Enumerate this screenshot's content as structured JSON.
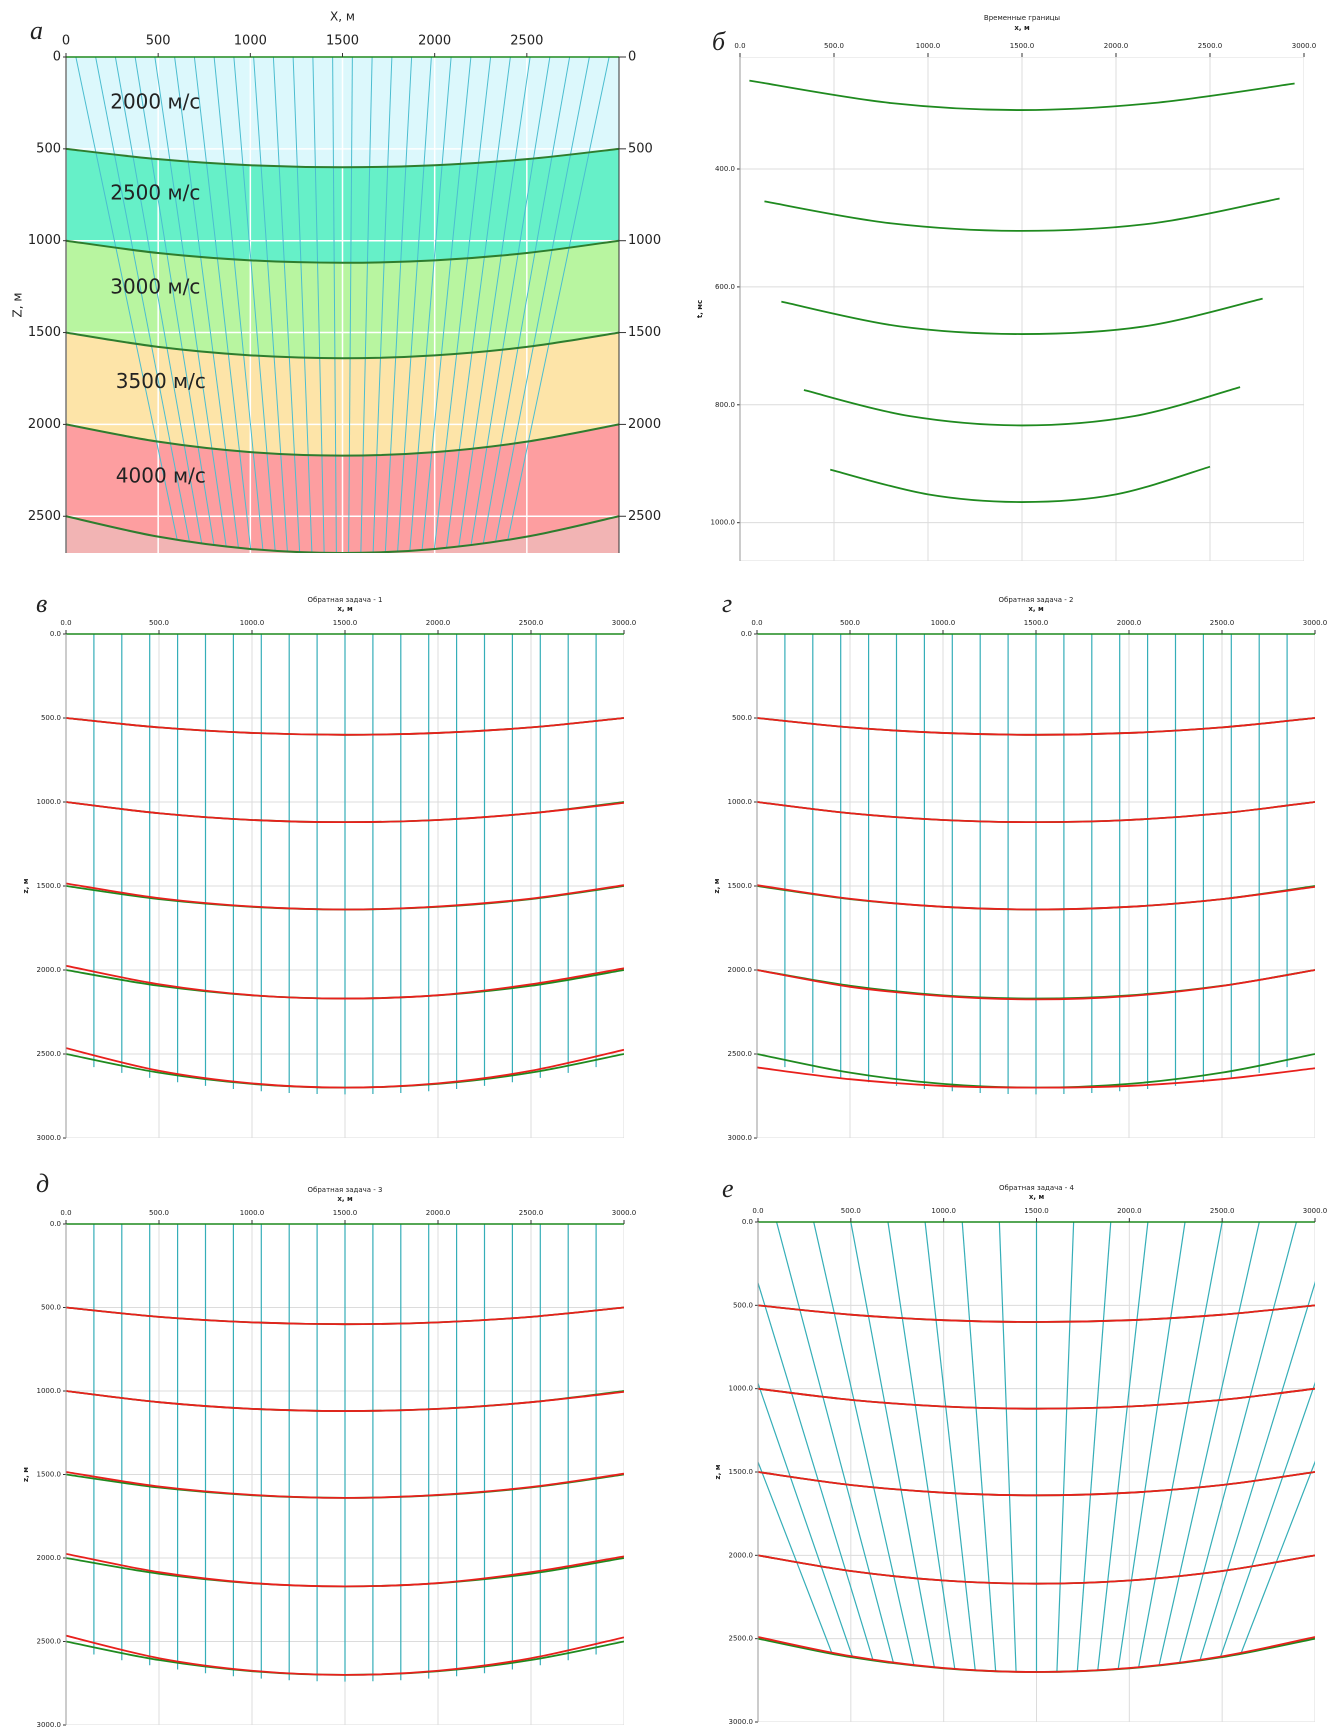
{
  "chart_data": [
    {
      "panel_label": "а",
      "type": "area",
      "x_label": "X, м",
      "y_label": "Z, м",
      "xlim": [
        0,
        3000
      ],
      "ylim": [
        0,
        2700
      ],
      "xticks": [
        0,
        500,
        1000,
        1500,
        2000,
        2500
      ],
      "yticks": [
        0,
        500,
        1000,
        1500,
        2000,
        2500
      ],
      "grid": true,
      "x": [
        0,
        500,
        1000,
        1500,
        2000,
        2500,
        3000
      ],
      "layers": [
        {
          "label": "2000 м/с",
          "color": "#dcf8fc"
        },
        {
          "label": "2500 м/с",
          "color": "#66f0c8"
        },
        {
          "label": "3000 м/с",
          "color": "#b8f5a0"
        },
        {
          "label": "3500 м/с",
          "color": "#fde4a8"
        },
        {
          "label": "4000 м/с",
          "color": "#fd9ea0"
        }
      ],
      "series": [
        {
          "color": "#2e7d2e",
          "values": [
            500,
            556,
            589,
            600,
            589,
            556,
            500
          ]
        },
        {
          "color": "#2e7d2e",
          "values": [
            1000,
            1067,
            1107,
            1120,
            1107,
            1067,
            1000
          ]
        },
        {
          "color": "#2e7d2e",
          "values": [
            1500,
            1578,
            1624,
            1640,
            1624,
            1578,
            1500
          ]
        },
        {
          "color": "#2e7d2e",
          "values": [
            2000,
            2094,
            2151,
            2170,
            2151,
            2094,
            2000
          ]
        },
        {
          "color": "#2e7d2e",
          "values": [
            2500,
            2611,
            2678,
            2700,
            2678,
            2611,
            2500
          ]
        }
      ]
    },
    {
      "panel_label": "б",
      "type": "line",
      "title": "Временные границы",
      "x_label": "x, м",
      "y_label": "t, мс",
      "xlim": [
        0,
        3000
      ],
      "ylim": [
        210,
        1065
      ],
      "xticks": [
        {
          "value": 0,
          "label": "0.0"
        },
        {
          "value": 500,
          "label": "500.0"
        },
        {
          "value": 1000,
          "label": "1000.0"
        },
        {
          "value": 1500,
          "label": "1500.0"
        },
        {
          "value": 2000,
          "label": "2000.0"
        },
        {
          "value": 2500,
          "label": "2500.0"
        },
        {
          "value": 3000,
          "label": "3000.0"
        }
      ],
      "yticks": [
        {
          "value": 400,
          "label": "400.0"
        },
        {
          "value": 600,
          "label": "600.0"
        },
        {
          "value": 800,
          "label": "800.0"
        },
        {
          "value": 1000,
          "label": "1000.0"
        }
      ],
      "grid": true,
      "series": [
        {
          "color": "#1f8a1f",
          "x": [
            50,
            800,
            1500,
            2200,
            2950
          ],
          "values": [
            250,
            288,
            300,
            288,
            255
          ]
        },
        {
          "color": "#1f8a1f",
          "x": [
            130,
            800,
            1500,
            2200,
            2870
          ],
          "values": [
            455,
            492,
            505,
            492,
            450
          ]
        },
        {
          "color": "#1f8a1f",
          "x": [
            220,
            850,
            1500,
            2150,
            2780
          ],
          "values": [
            625,
            667,
            680,
            667,
            620
          ]
        },
        {
          "color": "#1f8a1f",
          "x": [
            340,
            900,
            1500,
            2100,
            2660
          ],
          "values": [
            775,
            819,
            835,
            819,
            770
          ]
        },
        {
          "color": "#1f8a1f",
          "x": [
            480,
            1000,
            1500,
            2000,
            2500
          ],
          "values": [
            910,
            952,
            965,
            952,
            905
          ]
        }
      ]
    },
    {
      "panel_label": "в",
      "type": "line",
      "title": "Обратная задача - 1",
      "x_label": "x, м",
      "y_label": "z, м",
      "xlim": [
        0,
        3000
      ],
      "ylim": [
        0,
        3000
      ],
      "xticks": [
        {
          "value": 0,
          "label": "0.0"
        },
        {
          "value": 500,
          "label": "500.0"
        },
        {
          "value": 1000,
          "label": "1000.0"
        },
        {
          "value": 1500,
          "label": "1500.0"
        },
        {
          "value": 2000,
          "label": "2000.0"
        },
        {
          "value": 2500,
          "label": "2500.0"
        },
        {
          "value": 3000,
          "label": "3000.0"
        }
      ],
      "yticks": [
        {
          "value": 0,
          "label": "0.0"
        },
        {
          "value": 500,
          "label": "500.0"
        },
        {
          "value": 1000,
          "label": "1000.0"
        },
        {
          "value": 1500,
          "label": "1500.0"
        },
        {
          "value": 2000,
          "label": "2000.0"
        },
        {
          "value": 2500,
          "label": "2500.0"
        },
        {
          "value": 3000,
          "label": "3000.0"
        }
      ],
      "grid": true,
      "x": [
        0,
        500,
        1000,
        1500,
        2000,
        2500,
        3000
      ],
      "series": [
        {
          "color": "#1f8a1f",
          "values": [
            500,
            556,
            589,
            600,
            589,
            556,
            500
          ]
        },
        {
          "color": "#1f8a1f",
          "values": [
            1000,
            1067,
            1107,
            1120,
            1107,
            1067,
            1000
          ]
        },
        {
          "color": "#1f8a1f",
          "values": [
            1500,
            1578,
            1624,
            1640,
            1624,
            1578,
            1500
          ]
        },
        {
          "color": "#1f8a1f",
          "values": [
            2000,
            2094,
            2151,
            2170,
            2151,
            2094,
            2000
          ]
        },
        {
          "color": "#1f8a1f",
          "values": [
            2500,
            2611,
            2678,
            2700,
            2678,
            2611,
            2500
          ]
        },
        {
          "color": "#e8201c",
          "values": [
            500,
            556,
            589,
            600,
            589,
            556,
            500
          ]
        },
        {
          "color": "#e8201c",
          "values": [
            1000,
            1067,
            1107,
            1120,
            1107,
            1067,
            1005
          ]
        },
        {
          "color": "#e8201c",
          "values": [
            1485,
            1572,
            1622,
            1640,
            1622,
            1575,
            1495
          ]
        },
        {
          "color": "#e8201c",
          "values": [
            1975,
            2085,
            2150,
            2170,
            2150,
            2085,
            1990
          ]
        },
        {
          "color": "#e8201c",
          "values": [
            2465,
            2600,
            2675,
            2700,
            2675,
            2600,
            2475
          ]
        }
      ]
    },
    {
      "panel_label": "г",
      "type": "line",
      "title": "Обратная задача - 2",
      "x_label": "x, м",
      "y_label": "z, м",
      "xlim": [
        0,
        3000
      ],
      "ylim": [
        0,
        3000
      ],
      "xticks": [
        {
          "value": 0,
          "label": "0.0"
        },
        {
          "value": 500,
          "label": "500.0"
        },
        {
          "value": 1000,
          "label": "1000.0"
        },
        {
          "value": 1500,
          "label": "1500.0"
        },
        {
          "value": 2000,
          "label": "2000.0"
        },
        {
          "value": 2500,
          "label": "2500.0"
        },
        {
          "value": 3000,
          "label": "3000.0"
        }
      ],
      "yticks": [
        {
          "value": 0,
          "label": "0.0"
        },
        {
          "value": 500,
          "label": "500.0"
        },
        {
          "value": 1000,
          "label": "1000.0"
        },
        {
          "value": 1500,
          "label": "1500.0"
        },
        {
          "value": 2000,
          "label": "2000.0"
        },
        {
          "value": 2500,
          "label": "2500.0"
        },
        {
          "value": 3000,
          "label": "3000.0"
        }
      ],
      "grid": true,
      "x": [
        0,
        500,
        1000,
        1500,
        2000,
        2500,
        3000
      ],
      "series": [
        {
          "color": "#1f8a1f",
          "values": [
            500,
            556,
            589,
            600,
            589,
            556,
            500
          ]
        },
        {
          "color": "#1f8a1f",
          "values": [
            1000,
            1067,
            1107,
            1120,
            1107,
            1067,
            1000
          ]
        },
        {
          "color": "#1f8a1f",
          "values": [
            1500,
            1578,
            1624,
            1640,
            1624,
            1578,
            1500
          ]
        },
        {
          "color": "#1f8a1f",
          "values": [
            2000,
            2094,
            2151,
            2170,
            2151,
            2094,
            2000
          ]
        },
        {
          "color": "#1f8a1f",
          "values": [
            2500,
            2611,
            2678,
            2700,
            2678,
            2611,
            2500
          ]
        },
        {
          "color": "#e8201c",
          "values": [
            500,
            556,
            589,
            600,
            589,
            556,
            500
          ]
        },
        {
          "color": "#e8201c",
          "values": [
            1000,
            1067,
            1107,
            1120,
            1107,
            1067,
            1000
          ]
        },
        {
          "color": "#e8201c",
          "values": [
            1495,
            1576,
            1624,
            1640,
            1624,
            1578,
            1505
          ]
        },
        {
          "color": "#e8201c",
          "values": [
            2000,
            2100,
            2155,
            2175,
            2155,
            2095,
            2000
          ]
        },
        {
          "color": "#e8201c",
          "values": [
            2580,
            2650,
            2690,
            2700,
            2690,
            2650,
            2585
          ]
        }
      ]
    },
    {
      "panel_label": "д",
      "type": "line",
      "title": "Обратная задача - 3",
      "x_label": "x, м",
      "y_label": "z, м",
      "xlim": [
        0,
        3000
      ],
      "ylim": [
        0,
        3000
      ],
      "xticks": [
        {
          "value": 0,
          "label": "0.0"
        },
        {
          "value": 500,
          "label": "500.0"
        },
        {
          "value": 1000,
          "label": "1000.0"
        },
        {
          "value": 1500,
          "label": "1500.0"
        },
        {
          "value": 2000,
          "label": "2000.0"
        },
        {
          "value": 2500,
          "label": "2500.0"
        },
        {
          "value": 3000,
          "label": "3000.0"
        }
      ],
      "yticks": [
        {
          "value": 0,
          "label": "0.0"
        },
        {
          "value": 500,
          "label": "500.0"
        },
        {
          "value": 1000,
          "label": "1000.0"
        },
        {
          "value": 1500,
          "label": "1500.0"
        },
        {
          "value": 2000,
          "label": "2000.0"
        },
        {
          "value": 2500,
          "label": "2500.0"
        },
        {
          "value": 3000,
          "label": "3000.0"
        }
      ],
      "grid": true,
      "x": [
        0,
        500,
        1000,
        1500,
        2000,
        2500,
        3000
      ],
      "series": [
        {
          "color": "#1f8a1f",
          "values": [
            500,
            556,
            589,
            600,
            589,
            556,
            500
          ]
        },
        {
          "color": "#1f8a1f",
          "values": [
            1000,
            1067,
            1107,
            1120,
            1107,
            1067,
            1000
          ]
        },
        {
          "color": "#1f8a1f",
          "values": [
            1500,
            1578,
            1624,
            1640,
            1624,
            1578,
            1500
          ]
        },
        {
          "color": "#1f8a1f",
          "values": [
            2000,
            2094,
            2151,
            2170,
            2151,
            2094,
            2000
          ]
        },
        {
          "color": "#1f8a1f",
          "values": [
            2500,
            2611,
            2678,
            2700,
            2678,
            2611,
            2500
          ]
        },
        {
          "color": "#e8201c",
          "values": [
            500,
            556,
            589,
            600,
            589,
            556,
            500
          ]
        },
        {
          "color": "#e8201c",
          "values": [
            1000,
            1067,
            1107,
            1120,
            1107,
            1067,
            1005
          ]
        },
        {
          "color": "#e8201c",
          "values": [
            1485,
            1572,
            1622,
            1640,
            1622,
            1575,
            1495
          ]
        },
        {
          "color": "#e8201c",
          "values": [
            1975,
            2085,
            2150,
            2170,
            2150,
            2085,
            1990
          ]
        },
        {
          "color": "#e8201c",
          "values": [
            2465,
            2600,
            2675,
            2700,
            2675,
            2600,
            2475
          ]
        }
      ]
    },
    {
      "panel_label": "е",
      "type": "line",
      "title": "Обратная задача - 4",
      "x_label": "x, м",
      "y_label": "z, м",
      "xlim": [
        0,
        3000
      ],
      "ylim": [
        0,
        3000
      ],
      "xticks": [
        {
          "value": 0,
          "label": "0.0"
        },
        {
          "value": 500,
          "label": "500.0"
        },
        {
          "value": 1000,
          "label": "1000.0"
        },
        {
          "value": 1500,
          "label": "1500.0"
        },
        {
          "value": 2000,
          "label": "2000.0"
        },
        {
          "value": 2500,
          "label": "2500.0"
        },
        {
          "value": 3000,
          "label": "3000.0"
        }
      ],
      "yticks": [
        {
          "value": 0,
          "label": "0.0"
        },
        {
          "value": 500,
          "label": "500.0"
        },
        {
          "value": 1000,
          "label": "1000.0"
        },
        {
          "value": 1500,
          "label": "1500.0"
        },
        {
          "value": 2000,
          "label": "2000.0"
        },
        {
          "value": 2500,
          "label": "2500.0"
        },
        {
          "value": 3000,
          "label": "3000.0"
        }
      ],
      "grid": true,
      "x": [
        0,
        500,
        1000,
        1500,
        2000,
        2500,
        3000
      ],
      "series": [
        {
          "color": "#1f8a1f",
          "values": [
            500,
            556,
            589,
            600,
            589,
            556,
            500
          ]
        },
        {
          "color": "#1f8a1f",
          "values": [
            1000,
            1067,
            1107,
            1120,
            1107,
            1067,
            1000
          ]
        },
        {
          "color": "#1f8a1f",
          "values": [
            1500,
            1578,
            1624,
            1640,
            1624,
            1578,
            1500
          ]
        },
        {
          "color": "#1f8a1f",
          "values": [
            2000,
            2094,
            2151,
            2170,
            2151,
            2094,
            2000
          ]
        },
        {
          "color": "#1f8a1f",
          "values": [
            2500,
            2611,
            2678,
            2700,
            2678,
            2611,
            2500
          ]
        },
        {
          "color": "#e8201c",
          "values": [
            500,
            556,
            589,
            600,
            589,
            556,
            500
          ]
        },
        {
          "color": "#e8201c",
          "values": [
            1000,
            1067,
            1107,
            1120,
            1107,
            1067,
            1000
          ]
        },
        {
          "color": "#e8201c",
          "values": [
            1500,
            1578,
            1624,
            1640,
            1624,
            1578,
            1500
          ]
        },
        {
          "color": "#e8201c",
          "values": [
            2000,
            2094,
            2151,
            2170,
            2151,
            2094,
            2000
          ]
        },
        {
          "color": "#e8201c",
          "values": [
            2490,
            2605,
            2676,
            2700,
            2676,
            2606,
            2490
          ]
        }
      ]
    }
  ]
}
